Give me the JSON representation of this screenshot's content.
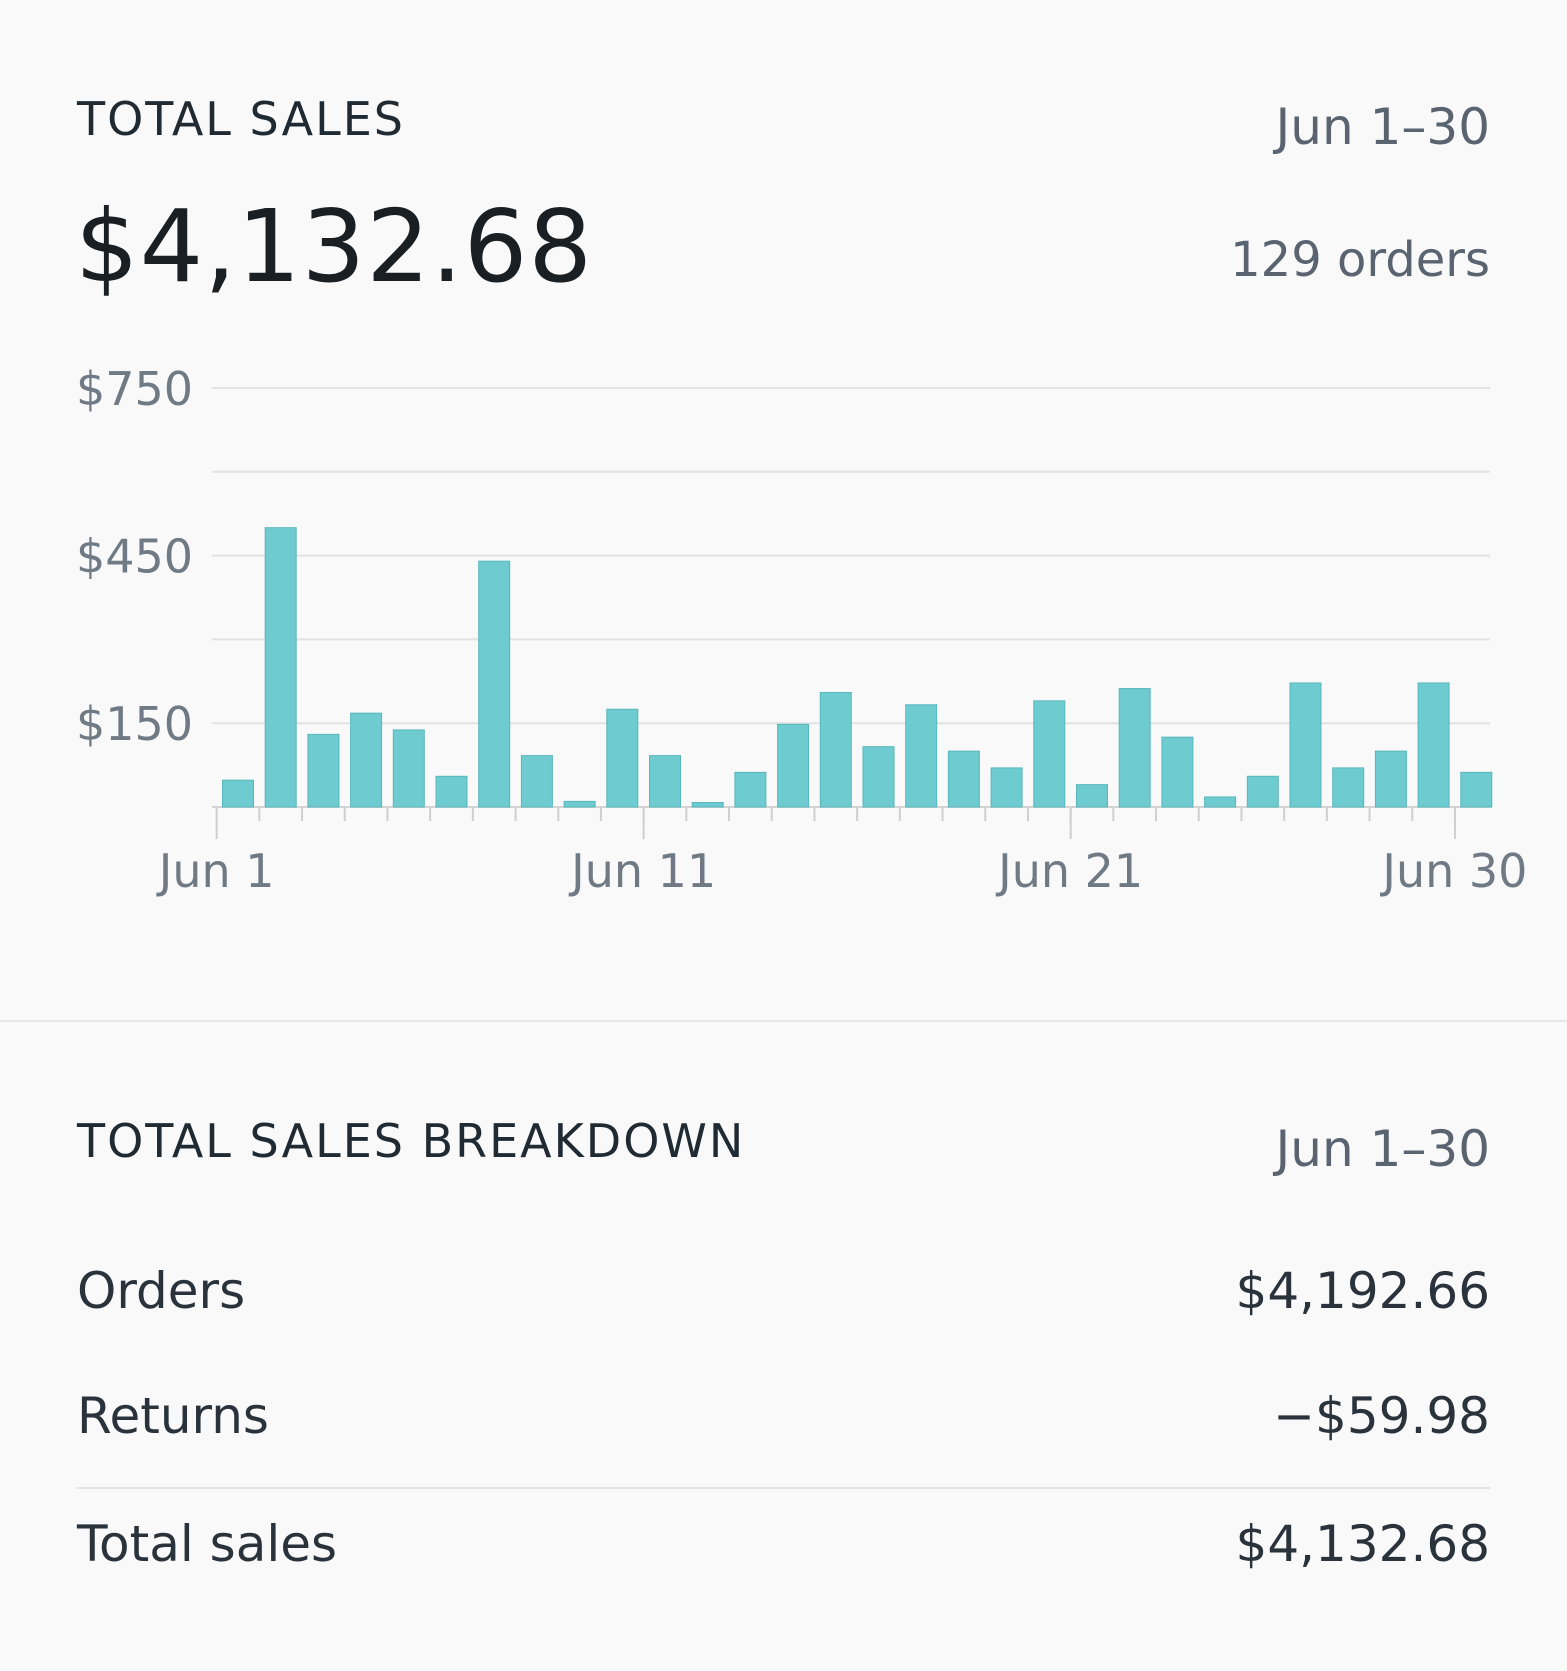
{
  "total_sales": {
    "heading": "TOTAL SALES",
    "date_range": "Jun 1–30",
    "amount": "$4,132.68",
    "orders": "129 orders"
  },
  "chart_data": {
    "type": "bar",
    "bar_color": "#6ecbd0",
    "grid": true,
    "ylim": [
      0,
      750
    ],
    "y_ticks": [
      0,
      150,
      300,
      450,
      600,
      750
    ],
    "y_tick_labels": [
      "$750",
      "$450",
      "$150"
    ],
    "y_labeled_values": [
      750,
      450,
      150
    ],
    "x_tick_labels": [
      "Jun 1",
      "Jun 11",
      "Jun 21",
      "Jun 30"
    ],
    "x_labeled_days": [
      1,
      11,
      21,
      30
    ],
    "x": [
      1,
      2,
      3,
      4,
      5,
      6,
      7,
      8,
      9,
      10,
      11,
      12,
      13,
      14,
      15,
      16,
      17,
      18,
      19,
      20,
      21,
      22,
      23,
      24,
      25,
      26,
      27,
      28,
      29,
      30
    ],
    "values": [
      48,
      500,
      130,
      168,
      138,
      55,
      440,
      92,
      10,
      175,
      92,
      8,
      62,
      148,
      205,
      108,
      183,
      100,
      70,
      190,
      40,
      212,
      125,
      18,
      55,
      222,
      70,
      100,
      222,
      62
    ]
  },
  "breakdown": {
    "heading": "TOTAL SALES BREAKDOWN",
    "date_range": "Jun 1–30",
    "rows": [
      {
        "label": "Orders",
        "value": "$4,192.66"
      },
      {
        "label": "Returns",
        "value": "−$59.98"
      },
      {
        "label": "Total sales",
        "value": "$4,132.68"
      }
    ]
  }
}
